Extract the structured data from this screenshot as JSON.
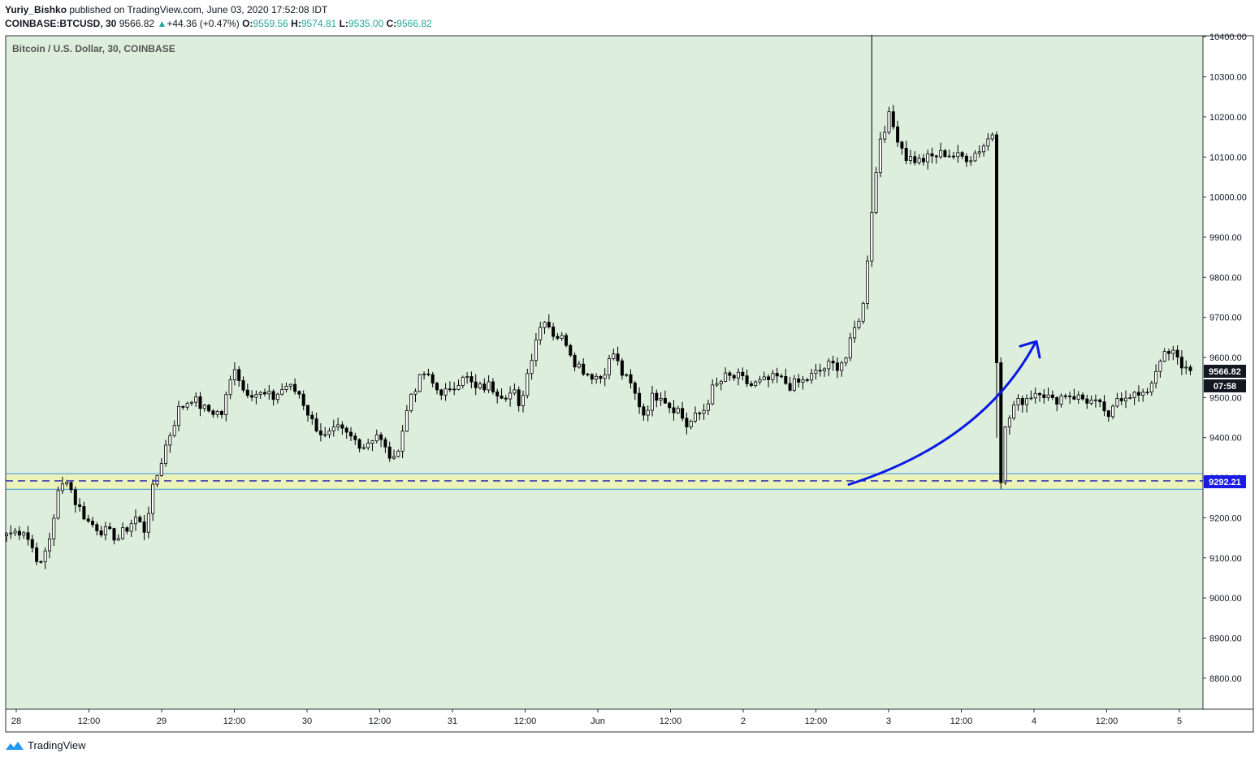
{
  "header": {
    "author": "Yuriy_Bishko",
    "published_text": "published on TradingView.com, June 03, 2020 17:52:08 IDT",
    "symbol": "COINBASE:BTCUSD, 30",
    "last": "9566.82",
    "change_arrow": "▲",
    "change": "+44.36 (+0.47%)",
    "o_label": "O:",
    "o_value": "9559.56",
    "h_label": "H:",
    "h_value": "9574.81",
    "l_label": "L:",
    "l_value": "9535.00",
    "c_label": "C:",
    "c_value": "9566.82"
  },
  "chart_title": "Bitcoin / U.S. Dollar, 30, COINBASE",
  "price_badge": "9566.82",
  "countdown_badge": "07:58",
  "level_badge": "9292.21",
  "footer": {
    "brand": "TradingView",
    "logo_icon": "tradingview-logo-icon"
  },
  "colors": {
    "background": "#ddeedd",
    "support_zone": "#ecf3b9",
    "zone_border": "#5aa7df",
    "dashed_line": "#3c3cb4",
    "arrow": "#0a19e6",
    "up_text": "#26a69a",
    "badge_level": "#1a1ae6",
    "badge_price": "#131722"
  },
  "chart_data": {
    "type": "candlestick",
    "symbol": "COINBASE:BTCUSD",
    "interval": "30",
    "y_ticks": [
      "10400.00",
      "10300.00",
      "10200.00",
      "10100.00",
      "10000.00",
      "9900.00",
      "9800.00",
      "9700.00",
      "9600.00",
      "9500.00",
      "9400.00",
      "9300.00",
      "9200.00",
      "9100.00",
      "9000.00",
      "8900.00",
      "8800.00"
    ],
    "x_ticks": [
      "28",
      "12:00",
      "29",
      "12:00",
      "30",
      "12:00",
      "31",
      "12:00",
      "Jun",
      "12:00",
      "2",
      "12:00",
      "3",
      "12:00",
      "4",
      "12:00",
      "5"
    ],
    "y_range": [
      8730,
      10410
    ],
    "support_zone": [
      9271,
      9310
    ],
    "support_level": 9292.21,
    "last_price": 9566.82,
    "path": [
      [
        0,
        9160
      ],
      [
        4,
        9170
      ],
      [
        8,
        9080
      ],
      [
        10,
        9150
      ],
      [
        12,
        9260
      ],
      [
        14,
        9300
      ],
      [
        16,
        9240
      ],
      [
        19,
        9190
      ],
      [
        22,
        9170
      ],
      [
        26,
        9150
      ],
      [
        30,
        9200
      ],
      [
        32,
        9170
      ],
      [
        34,
        9270
      ],
      [
        37,
        9380
      ],
      [
        40,
        9470
      ],
      [
        43,
        9500
      ],
      [
        46,
        9470
      ],
      [
        50,
        9460
      ],
      [
        53,
        9580
      ],
      [
        55,
        9520
      ],
      [
        58,
        9510
      ],
      [
        62,
        9500
      ],
      [
        65,
        9530
      ],
      [
        68,
        9510
      ],
      [
        71,
        9440
      ],
      [
        74,
        9400
      ],
      [
        77,
        9420
      ],
      [
        80,
        9400
      ],
      [
        83,
        9380
      ],
      [
        86,
        9410
      ],
      [
        88,
        9370
      ],
      [
        90,
        9340
      ],
      [
        92,
        9420
      ],
      [
        94,
        9510
      ],
      [
        97,
        9560
      ],
      [
        100,
        9520
      ],
      [
        103,
        9510
      ],
      [
        106,
        9560
      ],
      [
        109,
        9520
      ],
      [
        112,
        9530
      ],
      [
        115,
        9510
      ],
      [
        118,
        9510
      ],
      [
        119,
        9470
      ],
      [
        121,
        9560
      ],
      [
        123,
        9650
      ],
      [
        125,
        9700
      ],
      [
        127,
        9660
      ],
      [
        130,
        9640
      ],
      [
        132,
        9590
      ],
      [
        135,
        9560
      ],
      [
        138,
        9550
      ],
      [
        141,
        9610
      ],
      [
        143,
        9560
      ],
      [
        145,
        9530
      ],
      [
        148,
        9460
      ],
      [
        150,
        9500
      ],
      [
        152,
        9510
      ],
      [
        154,
        9480
      ],
      [
        156,
        9470
      ],
      [
        158,
        9430
      ],
      [
        160,
        9450
      ],
      [
        162,
        9470
      ],
      [
        164,
        9520
      ],
      [
        167,
        9550
      ],
      [
        170,
        9550
      ],
      [
        173,
        9530
      ],
      [
        176,
        9540
      ],
      [
        179,
        9550
      ],
      [
        182,
        9530
      ],
      [
        185,
        9540
      ],
      [
        188,
        9560
      ],
      [
        191,
        9580
      ],
      [
        193,
        9580
      ],
      [
        195,
        9600
      ],
      [
        197,
        9670
      ],
      [
        199,
        9730
      ],
      [
        201,
        9970
      ],
      [
        203,
        10150
      ],
      [
        205,
        10200
      ],
      [
        207,
        10150
      ],
      [
        209,
        10100
      ],
      [
        212,
        10090
      ],
      [
        215,
        10100
      ],
      [
        218,
        10110
      ],
      [
        221,
        10100
      ],
      [
        224,
        10100
      ],
      [
        227,
        10130
      ],
      [
        229,
        10160
      ],
      [
        230,
        9600
      ],
      [
        231,
        9300
      ],
      [
        232,
        9420
      ],
      [
        234,
        9480
      ],
      [
        237,
        9500
      ],
      [
        240,
        9520
      ],
      [
        243,
        9490
      ],
      [
        246,
        9510
      ],
      [
        249,
        9500
      ],
      [
        252,
        9490
      ],
      [
        255,
        9470
      ],
      [
        256,
        9440
      ],
      [
        258,
        9500
      ],
      [
        261,
        9510
      ],
      [
        264,
        9500
      ],
      [
        266,
        9540
      ],
      [
        268,
        9600
      ],
      [
        271,
        9610
      ],
      [
        273,
        9580
      ],
      [
        275,
        9567
      ]
    ],
    "annotations": {
      "support_zone_range": [
        9271,
        9310
      ],
      "dashed_line": 9292.21,
      "arrow": "curved upward arrow from 9280 near Jun 2 evening to ~9640 near Jun 4"
    }
  }
}
